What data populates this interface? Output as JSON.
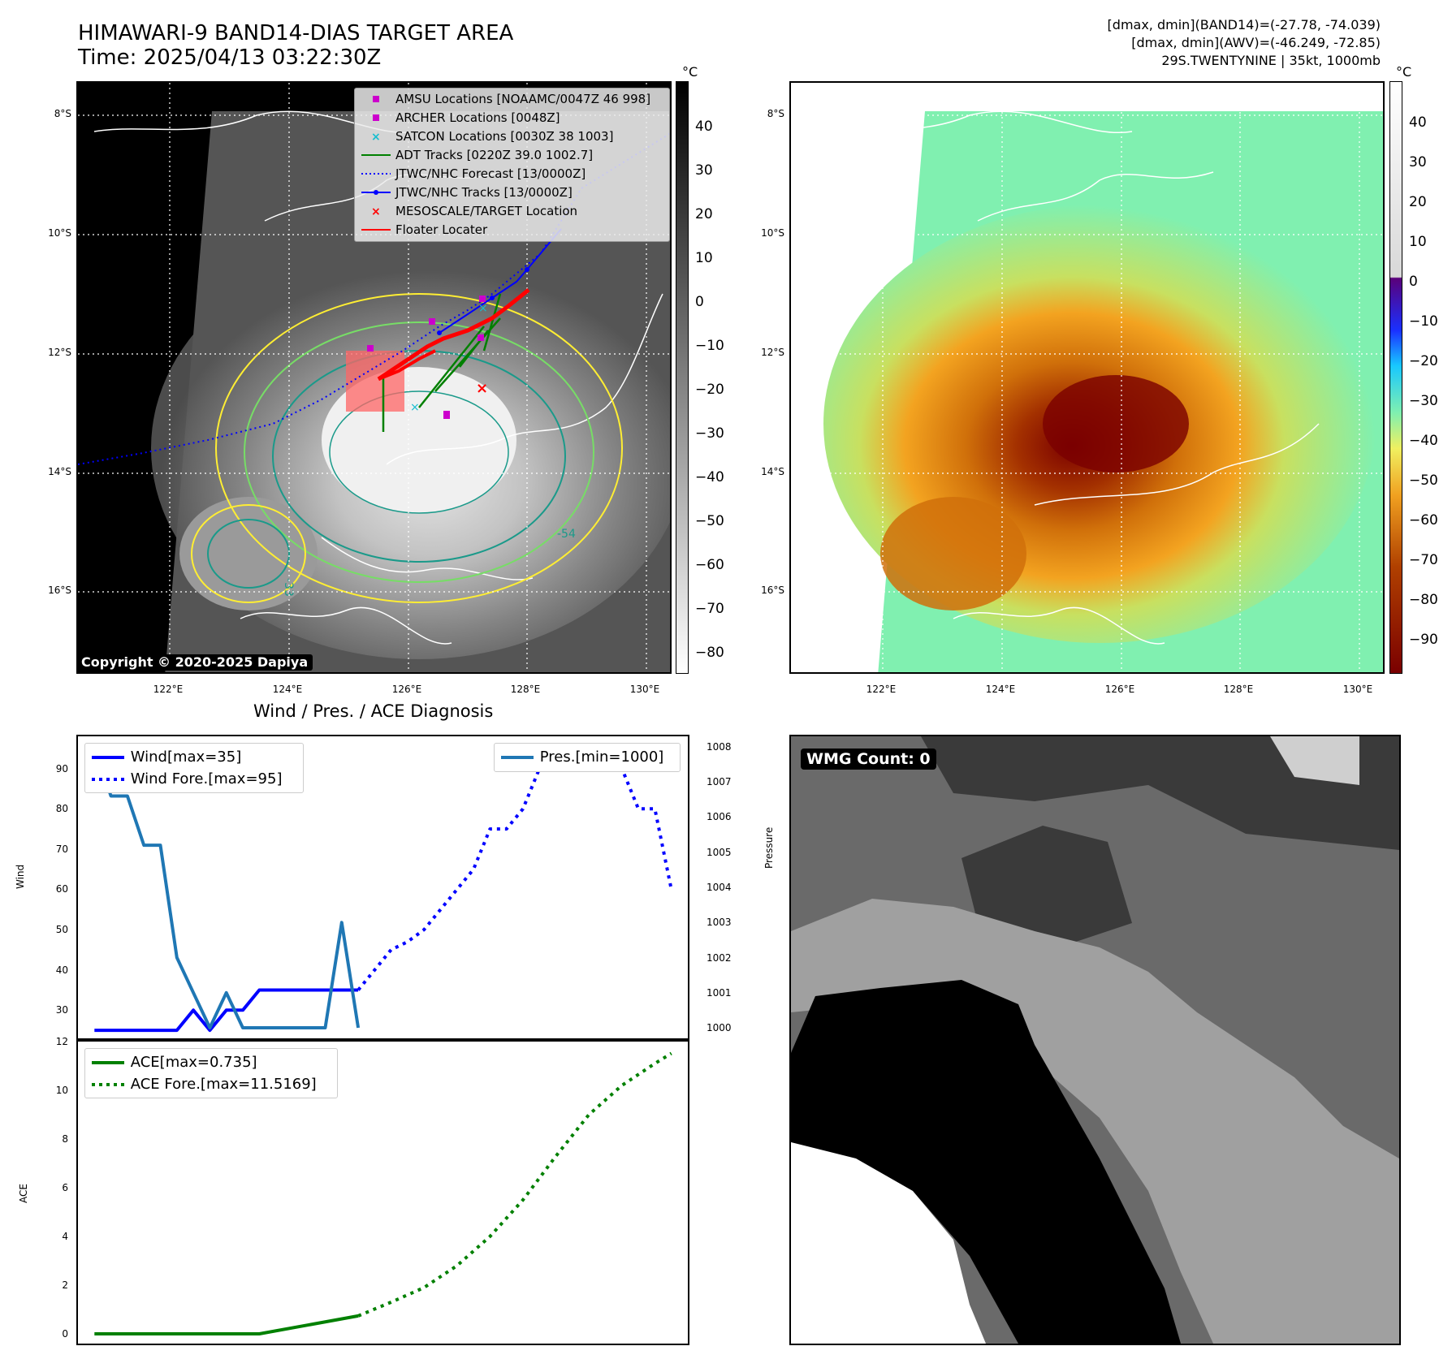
{
  "header": {
    "title": "HIMAWARI-9 BAND14-DIAS TARGET AREA",
    "time": "Time: 2025/04/13 03:22:30Z",
    "info_lines": [
      "[dmax, dmin](BAND14)=(-27.78, -74.039)",
      "[dmax, dmin](AWV)=(-46.249, -72.85)",
      "29S.TWENTYNINE | 35kt, 1000mb"
    ]
  },
  "map": {
    "lat_labels": [
      "8°S",
      "10°S",
      "12°S",
      "14°S",
      "16°S"
    ],
    "lon_labels": [
      "122°E",
      "124°E",
      "126°E",
      "128°E",
      "130°E"
    ],
    "copyright": "Copyright © 2020-2025 Dapiya",
    "legend": [
      {
        "label": "AMSU Locations [NOAAMC/0047Z 46 998]",
        "symbol": "square",
        "color": "#cc00cc"
      },
      {
        "label": "ARCHER Locations [0048Z]",
        "symbol": "square",
        "color": "#cc00cc"
      },
      {
        "label": "SATCON Locations [0030Z 38 1003]",
        "symbol": "x",
        "color": "#17becf"
      },
      {
        "label": "ADT Tracks [0220Z 39.0 1002.7]",
        "symbol": "line",
        "color": "#008000"
      },
      {
        "label": "JTWC/NHC Forecast [13/0000Z]",
        "symbol": "dotted",
        "color": "#0000ff"
      },
      {
        "label": "JTWC/NHC Tracks [13/0000Z]",
        "symbol": "line-dot",
        "color": "#0000ff"
      },
      {
        "label": "MESOSCALE/TARGET Location",
        "symbol": "x",
        "color": "#ff0000"
      },
      {
        "label": "Floater Locater",
        "symbol": "line",
        "color": "#ff0000"
      }
    ],
    "contour_labels": [
      "-54",
      "-33"
    ]
  },
  "colorbars": {
    "unit": "°C",
    "band14_ticks": [
      "40",
      "30",
      "20",
      "10",
      "0",
      "−10",
      "−20",
      "−30",
      "−40",
      "−50",
      "−60",
      "−70",
      "−80"
    ],
    "awv_ticks": [
      "40",
      "30",
      "20",
      "10",
      "0",
      "−10",
      "−20",
      "−30",
      "−40",
      "−50",
      "−60",
      "−70",
      "−80",
      "−90"
    ]
  },
  "diagnosis": {
    "title": "Wind / Pres. / ACE Diagnosis",
    "wind_axis_label": "Wind",
    "pressure_axis_label": "Pressure",
    "ace_axis_label": "ACE",
    "legend_wind": [
      "Wind[max=35]",
      "Wind Fore.[max=95]"
    ],
    "legend_pres": [
      "Pres.[min=1000]"
    ],
    "legend_ace": [
      "ACE[max=0.735]",
      "ACE Fore.[max=11.5169]"
    ]
  },
  "wmg": {
    "label": "WMG Count: 0"
  },
  "colors": {
    "wind": "#0000ff",
    "pressure": "#1f77b4",
    "ace": "#008000",
    "floater": "#ff0000"
  },
  "chart_data": [
    {
      "type": "line",
      "panel": "wind-pressure",
      "ylabel": "Wind",
      "ylim": [
        23,
        98
      ],
      "y_ticks": [
        30,
        40,
        50,
        60,
        70,
        80,
        90
      ],
      "y2label": "Pressure",
      "y2lim": [
        999.7,
        1008.3
      ],
      "y2_ticks": [
        1000,
        1001,
        1002,
        1003,
        1004,
        1005,
        1006,
        1007,
        1008
      ],
      "xlim": [
        -1,
        36
      ],
      "series": [
        {
          "name": "Wind[max=35]",
          "axis": "left",
          "style": "solid",
          "color": "#0000ff",
          "x": [
            0,
            1,
            2,
            3,
            4,
            5,
            6,
            7,
            8,
            9,
            10,
            11,
            12,
            13,
            14,
            15,
            16
          ],
          "y": [
            25,
            25,
            25,
            25,
            25,
            25,
            30,
            25,
            30,
            30,
            35,
            35,
            35,
            35,
            35,
            35,
            35
          ]
        },
        {
          "name": "Wind Fore.[max=95]",
          "axis": "left",
          "style": "dotted",
          "color": "#0000ff",
          "x": [
            16,
            17,
            18,
            19,
            20,
            21,
            22,
            23,
            24,
            25,
            26,
            27,
            28,
            29,
            30,
            31,
            32,
            33,
            34,
            35
          ],
          "y": [
            35,
            40,
            45,
            47,
            50,
            55,
            60,
            65,
            75,
            75,
            80,
            90,
            95,
            95,
            95,
            95,
            90,
            80,
            80,
            60
          ]
        },
        {
          "name": "Pres.[min=1000]",
          "axis": "right",
          "style": "solid",
          "color": "#1f77b4",
          "x": [
            0,
            1,
            2,
            3,
            4,
            5,
            6,
            7,
            8,
            9,
            10,
            11,
            12,
            13,
            14,
            15,
            16
          ],
          "y": [
            1008,
            1006.6,
            1006.6,
            1005.2,
            1005.2,
            1002,
            1001,
            1000,
            1001,
            1000,
            1000,
            1000,
            1000,
            1000,
            1000,
            1003,
            1000
          ]
        }
      ]
    },
    {
      "type": "line",
      "panel": "ace",
      "ylabel": "ACE",
      "ylim": [
        -0.4,
        12
      ],
      "y_ticks": [
        0,
        2,
        4,
        6,
        8,
        10,
        12
      ],
      "xlim": [
        -1,
        36
      ],
      "series": [
        {
          "name": "ACE[max=0.735]",
          "style": "solid",
          "color": "#008000",
          "x": [
            0,
            4,
            10,
            16
          ],
          "y": [
            0,
            0,
            0,
            0.735
          ]
        },
        {
          "name": "ACE Fore.[max=11.5169]",
          "style": "dotted",
          "color": "#008000",
          "x": [
            16,
            18,
            20,
            22,
            24,
            26,
            28,
            30,
            32,
            34,
            35
          ],
          "y": [
            0.735,
            1.3,
            1.9,
            2.8,
            4.0,
            5.5,
            7.3,
            9.0,
            10.2,
            11.1,
            11.5169
          ]
        }
      ]
    }
  ]
}
